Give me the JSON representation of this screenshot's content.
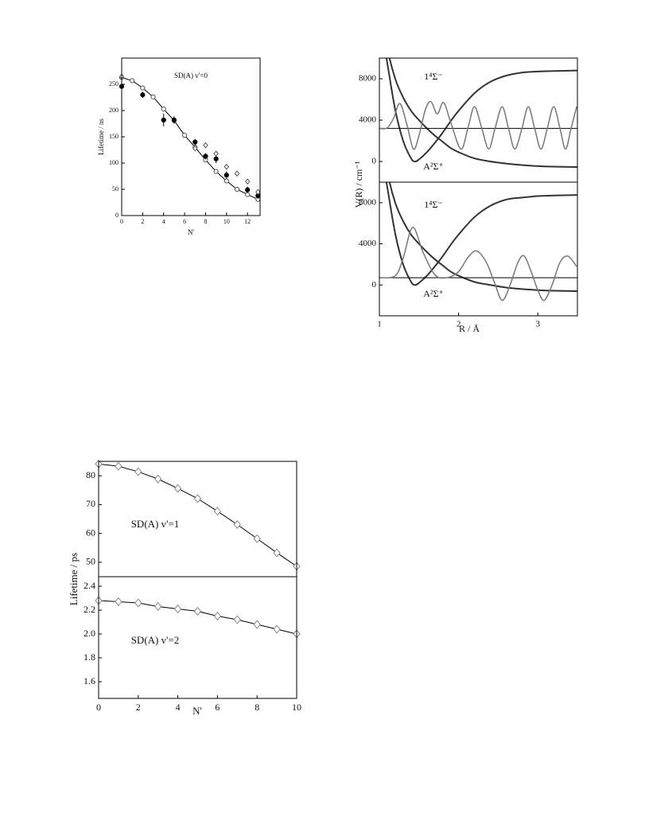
{
  "chart_data": [
    {
      "type": "scatter",
      "annotations": [
        "SD(A) v'=0"
      ],
      "x_label": "N'",
      "y_label": "Lifetime / ns",
      "xlim": [
        0,
        13.2
      ],
      "xticks": [
        0,
        2,
        4,
        6,
        8,
        10,
        12
      ],
      "ylim": [
        0,
        300
      ],
      "yticks": [
        0,
        50,
        100,
        150,
        200,
        250
      ],
      "series": [
        {
          "x": [
            0,
            1,
            2,
            3,
            4,
            5,
            6,
            7,
            8,
            9,
            10,
            11,
            12,
            13
          ],
          "values": [
            263,
            257,
            243,
            226,
            203,
            181,
            153,
            130,
            106,
            84,
            66,
            50,
            40,
            31
          ],
          "line": true,
          "marker": "open-circle",
          "color": "#000",
          "marker_color": "#555"
        },
        {
          "x": [
            0,
            2,
            4,
            5,
            7,
            8,
            9,
            10,
            12,
            13
          ],
          "values": [
            246,
            230,
            182,
            182,
            140,
            113,
            108,
            77,
            49,
            38
          ],
          "errors": [
            5,
            6,
            12,
            7,
            6,
            6,
            8,
            7,
            6,
            6
          ],
          "line": false,
          "marker": "filled-circle",
          "color": "#000",
          "marker_color": "#000"
        },
        {
          "x": [
            0,
            7,
            8,
            9,
            10,
            11,
            12,
            13
          ],
          "values": [
            265,
            128,
            134,
            118,
            93,
            80,
            65,
            45
          ],
          "line": false,
          "marker": "open-diamond",
          "color": "#000",
          "marker_color": "#555"
        }
      ]
    },
    {
      "type": "line",
      "annotations": [
        "1⁴Σ⁻",
        "A²Σ⁺"
      ],
      "xlim": [
        1,
        3.5
      ],
      "ylim": [
        -2000,
        10000
      ],
      "yticks": [
        0,
        4000,
        8000
      ],
      "smooth": true,
      "series": [
        {
          "x": [
            1,
            1.1,
            1.2,
            1.3,
            1.4,
            1.45,
            1.5,
            1.6,
            1.7,
            1.8,
            1.9,
            2.0,
            2.2,
            2.4,
            2.6,
            2.8,
            3.0,
            3.2,
            3.5
          ],
          "values": [
            14000,
            9500,
            5000,
            2000,
            300,
            0,
            200,
            900,
            1800,
            2800,
            3900,
            4900,
            6600,
            7700,
            8300,
            8600,
            8700,
            8750,
            8800
          ],
          "line": true,
          "color": "#333",
          "width": 2
        },
        {
          "x": [
            1,
            1.1,
            1.2,
            1.3,
            1.4,
            1.5,
            1.6,
            1.7,
            1.8,
            1.9,
            2.0,
            2.2,
            2.4,
            2.6,
            2.8,
            3.0,
            3.2,
            3.5
          ],
          "values": [
            16000,
            11000,
            8000,
            6200,
            4900,
            4000,
            3200,
            2500,
            1900,
            1300,
            900,
            300,
            0,
            -200,
            -350,
            -450,
            -500,
            -540
          ],
          "line": true,
          "color": "#333",
          "width": 2
        },
        {
          "x": [
            1,
            3.5
          ],
          "values": [
            3200,
            3200
          ],
          "line": true,
          "color": "#000",
          "width": 1
        },
        {
          "x": [
            1.0,
            1.1,
            1.18,
            1.26,
            1.35,
            1.43,
            1.5,
            1.58,
            1.65,
            1.73,
            1.81,
            1.9,
            2.03,
            2.12,
            2.2,
            2.29,
            2.38,
            2.46,
            2.55,
            2.63,
            2.71,
            2.8,
            2.88,
            2.96,
            3.04,
            3.12,
            3.2,
            3.28,
            3.35,
            3.42,
            3.49
          ],
          "values": [
            3200,
            3250,
            4200,
            5600,
            3500,
            1200,
            2500,
            5000,
            5800,
            4600,
            5700,
            3800,
            1200,
            3300,
            5300,
            3300,
            1200,
            3200,
            5300,
            3200,
            1200,
            3200,
            5300,
            3200,
            1200,
            3200,
            5300,
            3200,
            1200,
            3200,
            5300
          ],
          "line": true,
          "color": "#777",
          "width": 1.5
        }
      ]
    },
    {
      "type": "line",
      "annotations": [
        "1⁴Σ⁻",
        "A²Σ⁺"
      ],
      "x_label": "R / Å",
      "y_label": "V(R) / cm⁻¹",
      "xlim": [
        1,
        3.5
      ],
      "xticks": [
        1,
        2,
        3
      ],
      "ylim": [
        -3000,
        10000
      ],
      "yticks": [
        0,
        4000,
        8000
      ],
      "smooth": true,
      "series": [
        {
          "x": [
            1,
            1.1,
            1.2,
            1.3,
            1.4,
            1.45,
            1.5,
            1.6,
            1.7,
            1.8,
            1.9,
            2.0,
            2.2,
            2.4,
            2.6,
            2.8,
            3.0,
            3.2,
            3.5
          ],
          "values": [
            14000,
            9500,
            5000,
            2000,
            300,
            0,
            200,
            900,
            1800,
            2800,
            3900,
            4900,
            6600,
            7700,
            8300,
            8500,
            8650,
            8700,
            8750
          ],
          "line": true,
          "color": "#333",
          "width": 2
        },
        {
          "x": [
            1,
            1.1,
            1.2,
            1.3,
            1.4,
            1.5,
            1.6,
            1.7,
            1.8,
            1.9,
            2.0,
            2.2,
            2.4,
            2.6,
            2.8,
            3.0,
            3.2,
            3.5
          ],
          "values": [
            16000,
            11000,
            8000,
            6200,
            4900,
            4000,
            3200,
            2500,
            1900,
            1300,
            900,
            300,
            0,
            -250,
            -400,
            -500,
            -560,
            -600
          ],
          "line": true,
          "color": "#333",
          "width": 2
        },
        {
          "x": [
            1,
            3.5
          ],
          "values": [
            700,
            700
          ],
          "line": true,
          "color": "#000",
          "width": 1
        },
        {
          "x": [
            1.0,
            1.2,
            1.3,
            1.42,
            1.55,
            1.7,
            1.85,
            2.0,
            2.12,
            2.23,
            2.35,
            2.45,
            2.55,
            2.65,
            2.75,
            2.83,
            2.93,
            3.0,
            3.08,
            3.18,
            3.28,
            3.38,
            3.49
          ],
          "values": [
            700,
            900,
            2600,
            5600,
            3200,
            1000,
            700,
            1300,
            2700,
            3300,
            2200,
            300,
            -1500,
            0,
            2200,
            2800,
            1000,
            -500,
            -1500,
            0,
            2200,
            2800,
            1800
          ],
          "line": true,
          "color": "#777",
          "width": 1.5
        }
      ]
    },
    {
      "type": "line",
      "annotations": [
        "SD(A) v'=1"
      ],
      "y_label": "Lifetime / ps",
      "xlim": [
        0,
        10
      ],
      "ylim": [
        45,
        85
      ],
      "yticks": [
        50,
        60,
        70,
        80
      ],
      "series": [
        {
          "x": [
            0,
            1,
            2,
            3,
            4,
            5,
            6,
            7,
            8,
            9,
            10
          ],
          "values": [
            84.1,
            83.3,
            81.4,
            78.9,
            75.6,
            72.1,
            67.7,
            63.1,
            58.2,
            53.3,
            48.6
          ],
          "line": true,
          "marker": "open-diamond",
          "color": "#000",
          "marker_color": "#888"
        }
      ]
    },
    {
      "type": "line",
      "annotations": [
        "SD(A) v'=2"
      ],
      "x_label": "N'",
      "xlim": [
        0,
        10
      ],
      "xticks": [
        0,
        2,
        4,
        6,
        8,
        10
      ],
      "ylim": [
        1.46,
        2.48
      ],
      "yticks": [
        1.6,
        1.8,
        {
          "value": 2,
          "label": "2.0"
        },
        2.2,
        2.4
      ],
      "series": [
        {
          "x": [
            0,
            1,
            2,
            3,
            4,
            5,
            6,
            7,
            8,
            9,
            10
          ],
          "values": [
            2.28,
            2.27,
            2.26,
            2.23,
            2.21,
            2.19,
            2.15,
            2.12,
            2.08,
            2.04,
            2.0
          ],
          "line": true,
          "marker": "open-diamond",
          "color": "#000",
          "marker_color": "#888"
        }
      ]
    }
  ]
}
